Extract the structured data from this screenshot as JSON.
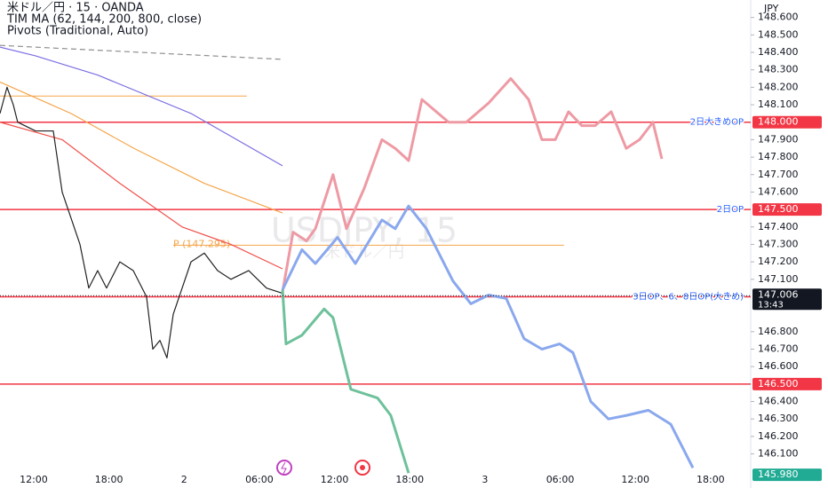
{
  "chart_data": {
    "type": "line",
    "title": "米ドル／円 · 15 · OANDA",
    "indicators": [
      "TIM MA (62, 144, 200, 800, close)",
      "Pivots (Traditional, Auto)"
    ],
    "watermark": [
      "USDJPY, 15",
      "米ドル／円"
    ],
    "y_axis_label": "JPY",
    "xlim": [
      9.31,
      69.2
    ],
    "ylim": [
      145.93,
      148.7
    ],
    "xticks": [
      {
        "value": 12,
        "label": "12:00"
      },
      {
        "value": 18,
        "label": "18:00"
      },
      {
        "value": 24,
        "label": "2"
      },
      {
        "value": 30,
        "label": "06:00"
      },
      {
        "value": 36,
        "label": "12:00"
      },
      {
        "value": 42,
        "label": "18:00"
      },
      {
        "value": 48,
        "label": "3"
      },
      {
        "value": 54,
        "label": "06:00"
      },
      {
        "value": 60,
        "label": "12:00"
      },
      {
        "value": 66,
        "label": "18:00"
      }
    ],
    "yticks": [
      {
        "value": 146.1,
        "label": "146.100"
      },
      {
        "value": 146.2,
        "label": "146.200"
      },
      {
        "value": 146.3,
        "label": "146.300"
      },
      {
        "value": 146.4,
        "label": "146.400"
      },
      {
        "value": 146.6,
        "label": "146.600"
      },
      {
        "value": 146.7,
        "label": "146.700"
      },
      {
        "value": 146.8,
        "label": "146.800"
      },
      {
        "value": 147.1,
        "label": "147.100"
      },
      {
        "value": 147.2,
        "label": "147.200"
      },
      {
        "value": 147.3,
        "label": "147.300"
      },
      {
        "value": 147.4,
        "label": "147.400"
      },
      {
        "value": 147.6,
        "label": "147.600"
      },
      {
        "value": 147.7,
        "label": "147.700"
      },
      {
        "value": 147.8,
        "label": "147.800"
      },
      {
        "value": 147.9,
        "label": "147.900"
      },
      {
        "value": 148.1,
        "label": "148.100"
      },
      {
        "value": 148.2,
        "label": "148.200"
      },
      {
        "value": 148.3,
        "label": "148.300"
      },
      {
        "value": 148.4,
        "label": "148.400"
      },
      {
        "value": 148.5,
        "label": "148.500"
      },
      {
        "value": 148.6,
        "label": "148.600"
      }
    ],
    "series": [
      {
        "color": "#8f8f8f",
        "dash": true,
        "x": [
          9.31,
          31.85
        ],
        "values": [
          148.44,
          148.36
        ]
      },
      {
        "color": "#7b6fe0",
        "x": [
          9.31,
          12.14,
          17.1,
          24.55,
          31.85
        ],
        "values": [
          148.43,
          148.38,
          148.27,
          148.05,
          147.75
        ]
      },
      {
        "color": "#f5a54a",
        "x": [
          9.31,
          14.98,
          20.0,
          25.6,
          31.85
        ],
        "values": [
          148.23,
          148.05,
          147.85,
          147.65,
          147.48
        ]
      },
      {
        "color": "#f0504a",
        "x": [
          9.31,
          14.27,
          18.87,
          23.84,
          27.73,
          31.85
        ],
        "values": [
          148.0,
          147.9,
          147.65,
          147.4,
          147.3,
          147.16
        ]
      },
      {
        "color": "#222222",
        "x": [
          9.31,
          9.87,
          10.37,
          10.72,
          12.14,
          13.56,
          14.27,
          14.98,
          15.69,
          16.39,
          17.1,
          17.81,
          18.87,
          19.94,
          21.0,
          21.5,
          22.07,
          22.63,
          23.13,
          23.84,
          24.55,
          25.61,
          26.67,
          27.73,
          29.15,
          30.57,
          31.85
        ],
        "values": [
          148.05,
          148.2,
          148.1,
          148.0,
          147.95,
          147.95,
          147.6,
          147.45,
          147.3,
          147.05,
          147.15,
          147.05,
          147.2,
          147.15,
          147.0,
          146.7,
          146.75,
          146.65,
          146.9,
          147.05,
          147.2,
          147.25,
          147.15,
          147.1,
          147.15,
          147.05,
          147.02
        ]
      },
      {
        "color": "#ee9aa4",
        "width": 3,
        "x": [
          31.85,
          32.69,
          33.76,
          34.47,
          35.88,
          36.95,
          38.36,
          39.78,
          40.84,
          41.91,
          42.97,
          45.1,
          46.51,
          48.29,
          50.06,
          51.48,
          52.54,
          53.61,
          54.67,
          55.73,
          56.79,
          58.07,
          59.27,
          60.33,
          61.4,
          62.11
        ],
        "values": [
          147.03,
          147.37,
          147.32,
          147.39,
          147.7,
          147.39,
          147.62,
          147.9,
          147.85,
          147.78,
          148.13,
          148.0,
          148.0,
          148.11,
          148.25,
          148.13,
          147.9,
          147.9,
          148.06,
          147.98,
          147.98,
          148.06,
          147.85,
          147.9,
          148.0,
          147.79
        ]
      },
      {
        "color": "#8aa8ee",
        "width": 3,
        "x": [
          31.85,
          33.4,
          34.47,
          36.24,
          37.66,
          39.78,
          40.84,
          41.91,
          43.33,
          45.45,
          46.87,
          48.29,
          49.7,
          51.12,
          52.54,
          53.96,
          55.02,
          56.44,
          57.85,
          59.27,
          61.04,
          62.82,
          64.59
        ],
        "values": [
          147.04,
          147.27,
          147.19,
          147.34,
          147.19,
          147.44,
          147.39,
          147.52,
          147.39,
          147.09,
          146.96,
          147.01,
          146.99,
          146.76,
          146.7,
          146.73,
          146.68,
          146.4,
          146.3,
          146.32,
          146.35,
          146.27,
          146.02
        ]
      },
      {
        "color": "#6ec19b",
        "width": 3,
        "x": [
          31.85,
          32.13,
          33.4,
          35.17,
          35.88,
          37.3,
          39.43,
          40.49,
          41.91
        ],
        "values": [
          147.04,
          146.73,
          146.78,
          146.93,
          146.88,
          146.47,
          146.42,
          146.32,
          145.99
        ]
      }
    ],
    "levels": [
      {
        "value": 148.0,
        "label": "2日大きめOP",
        "price": "148.000"
      },
      {
        "value": 147.5,
        "label": "2日OP",
        "price": "147.500"
      },
      {
        "value": 147.0,
        "label": "3日OP、6、8日OP(大きめ)",
        "price": "147.000"
      },
      {
        "value": 146.5,
        "price": "146.500"
      }
    ],
    "level_color": "#f23645",
    "pivot": {
      "label": "P (147.295)",
      "value": 147.295,
      "x": [
        23.13,
        54.3
      ],
      "color": "#f5a54a"
    },
    "orange_line": {
      "value": 148.15,
      "x": [
        9.31,
        29.0
      ],
      "color": "#f5a54a"
    },
    "current_price": {
      "value": 147.006,
      "label": "147.006",
      "time": "13:43"
    },
    "low_price": {
      "value": 145.98,
      "label": "145.980",
      "color": "#22ab94"
    }
  }
}
